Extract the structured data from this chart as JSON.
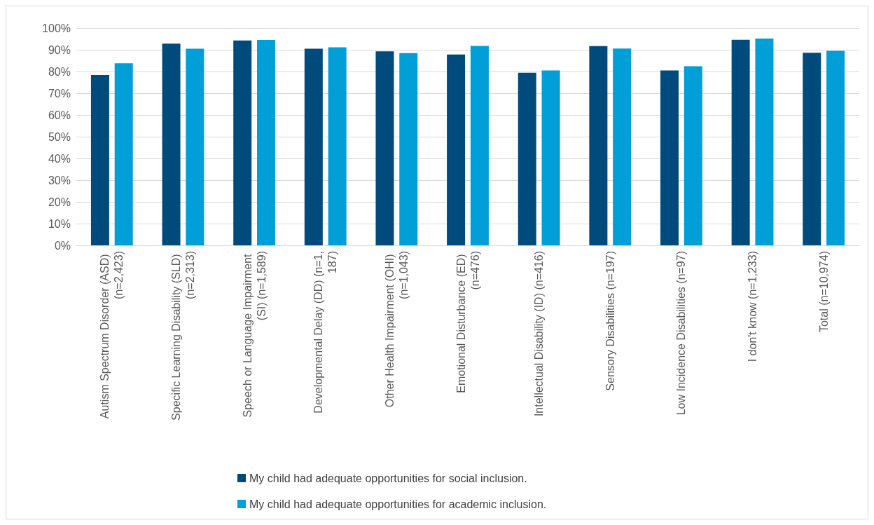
{
  "chart_data": {
    "type": "bar",
    "categories": [
      "Autism Spectrum Disorder (ASD) (n=2,423)",
      "Specific Learning Disability (SLD) (n=2,313)",
      "Speech or Language Impairment (SI) (n=1,589)",
      "Developmental Delay (DD) (n=1,187)",
      "Other Health Impairment (OHI) (n=1,043)",
      "Emotional Disturbance (ED) (n=476)",
      "Intellectual Disability (ID) (n=416)",
      "Sensory Disabilities (n=197)",
      "Low Incidence Disabilities (n=97)",
      "I don't know (n=1,233)",
      "Total (n=10,974)"
    ],
    "series": [
      {
        "name": "My child had adequate opportunities for social inclusion.",
        "color": "#004b7c",
        "values": [
          78.4,
          92.8,
          94.3,
          90.5,
          89.3,
          87.8,
          79.4,
          91.7,
          80.5,
          94.6,
          88.6
        ]
      },
      {
        "name": "My child had adequate opportunities for academic inclusion.",
        "color": "#009fd8",
        "values": [
          83.8,
          90.5,
          94.5,
          91.1,
          88.5,
          91.8,
          80.5,
          90.6,
          82.4,
          95.2,
          89.5
        ]
      }
    ],
    "ylim": [
      0,
      100
    ],
    "yticks": [
      {
        "value": 0,
        "label": "0%"
      },
      {
        "value": 10,
        "label": "10%"
      },
      {
        "value": 20,
        "label": "20%"
      },
      {
        "value": 30,
        "label": "30%"
      },
      {
        "value": 40,
        "label": "40%"
      },
      {
        "value": 50,
        "label": "50%"
      },
      {
        "value": 60,
        "label": "60%"
      },
      {
        "value": 70,
        "label": "70%"
      },
      {
        "value": 80,
        "label": "80%"
      },
      {
        "value": 90,
        "label": "90%"
      },
      {
        "value": 100,
        "label": "100%"
      }
    ],
    "grid": "y",
    "legend": "bottom"
  }
}
